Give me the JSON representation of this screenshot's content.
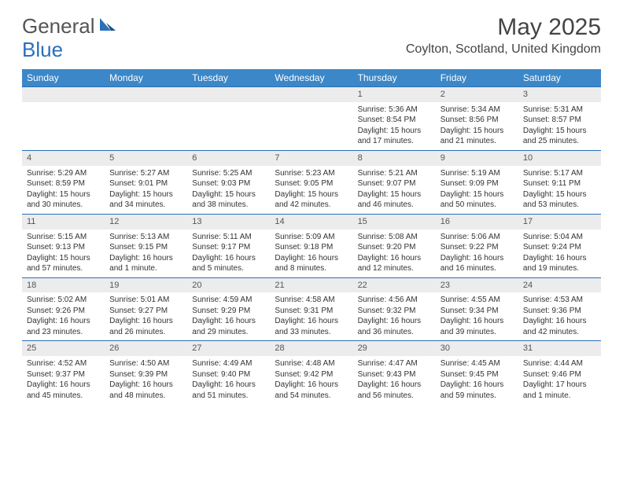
{
  "logo": {
    "general": "General",
    "blue": "Blue"
  },
  "title": "May 2025",
  "location": "Coylton, Scotland, United Kingdom",
  "colors": {
    "header_bg": "#3b87c8",
    "border": "#2a70b8",
    "daynum_bg": "#ececec",
    "text": "#333333"
  },
  "day_headers": [
    "Sunday",
    "Monday",
    "Tuesday",
    "Wednesday",
    "Thursday",
    "Friday",
    "Saturday"
  ],
  "weeks": [
    [
      {
        "empty": true
      },
      {
        "empty": true
      },
      {
        "empty": true
      },
      {
        "empty": true
      },
      {
        "day": "1",
        "sunrise": "Sunrise: 5:36 AM",
        "sunset": "Sunset: 8:54 PM",
        "daylight": "Daylight: 15 hours and 17 minutes."
      },
      {
        "day": "2",
        "sunrise": "Sunrise: 5:34 AM",
        "sunset": "Sunset: 8:56 PM",
        "daylight": "Daylight: 15 hours and 21 minutes."
      },
      {
        "day": "3",
        "sunrise": "Sunrise: 5:31 AM",
        "sunset": "Sunset: 8:57 PM",
        "daylight": "Daylight: 15 hours and 25 minutes."
      }
    ],
    [
      {
        "day": "4",
        "sunrise": "Sunrise: 5:29 AM",
        "sunset": "Sunset: 8:59 PM",
        "daylight": "Daylight: 15 hours and 30 minutes."
      },
      {
        "day": "5",
        "sunrise": "Sunrise: 5:27 AM",
        "sunset": "Sunset: 9:01 PM",
        "daylight": "Daylight: 15 hours and 34 minutes."
      },
      {
        "day": "6",
        "sunrise": "Sunrise: 5:25 AM",
        "sunset": "Sunset: 9:03 PM",
        "daylight": "Daylight: 15 hours and 38 minutes."
      },
      {
        "day": "7",
        "sunrise": "Sunrise: 5:23 AM",
        "sunset": "Sunset: 9:05 PM",
        "daylight": "Daylight: 15 hours and 42 minutes."
      },
      {
        "day": "8",
        "sunrise": "Sunrise: 5:21 AM",
        "sunset": "Sunset: 9:07 PM",
        "daylight": "Daylight: 15 hours and 46 minutes."
      },
      {
        "day": "9",
        "sunrise": "Sunrise: 5:19 AM",
        "sunset": "Sunset: 9:09 PM",
        "daylight": "Daylight: 15 hours and 50 minutes."
      },
      {
        "day": "10",
        "sunrise": "Sunrise: 5:17 AM",
        "sunset": "Sunset: 9:11 PM",
        "daylight": "Daylight: 15 hours and 53 minutes."
      }
    ],
    [
      {
        "day": "11",
        "sunrise": "Sunrise: 5:15 AM",
        "sunset": "Sunset: 9:13 PM",
        "daylight": "Daylight: 15 hours and 57 minutes."
      },
      {
        "day": "12",
        "sunrise": "Sunrise: 5:13 AM",
        "sunset": "Sunset: 9:15 PM",
        "daylight": "Daylight: 16 hours and 1 minute."
      },
      {
        "day": "13",
        "sunrise": "Sunrise: 5:11 AM",
        "sunset": "Sunset: 9:17 PM",
        "daylight": "Daylight: 16 hours and 5 minutes."
      },
      {
        "day": "14",
        "sunrise": "Sunrise: 5:09 AM",
        "sunset": "Sunset: 9:18 PM",
        "daylight": "Daylight: 16 hours and 8 minutes."
      },
      {
        "day": "15",
        "sunrise": "Sunrise: 5:08 AM",
        "sunset": "Sunset: 9:20 PM",
        "daylight": "Daylight: 16 hours and 12 minutes."
      },
      {
        "day": "16",
        "sunrise": "Sunrise: 5:06 AM",
        "sunset": "Sunset: 9:22 PM",
        "daylight": "Daylight: 16 hours and 16 minutes."
      },
      {
        "day": "17",
        "sunrise": "Sunrise: 5:04 AM",
        "sunset": "Sunset: 9:24 PM",
        "daylight": "Daylight: 16 hours and 19 minutes."
      }
    ],
    [
      {
        "day": "18",
        "sunrise": "Sunrise: 5:02 AM",
        "sunset": "Sunset: 9:26 PM",
        "daylight": "Daylight: 16 hours and 23 minutes."
      },
      {
        "day": "19",
        "sunrise": "Sunrise: 5:01 AM",
        "sunset": "Sunset: 9:27 PM",
        "daylight": "Daylight: 16 hours and 26 minutes."
      },
      {
        "day": "20",
        "sunrise": "Sunrise: 4:59 AM",
        "sunset": "Sunset: 9:29 PM",
        "daylight": "Daylight: 16 hours and 29 minutes."
      },
      {
        "day": "21",
        "sunrise": "Sunrise: 4:58 AM",
        "sunset": "Sunset: 9:31 PM",
        "daylight": "Daylight: 16 hours and 33 minutes."
      },
      {
        "day": "22",
        "sunrise": "Sunrise: 4:56 AM",
        "sunset": "Sunset: 9:32 PM",
        "daylight": "Daylight: 16 hours and 36 minutes."
      },
      {
        "day": "23",
        "sunrise": "Sunrise: 4:55 AM",
        "sunset": "Sunset: 9:34 PM",
        "daylight": "Daylight: 16 hours and 39 minutes."
      },
      {
        "day": "24",
        "sunrise": "Sunrise: 4:53 AM",
        "sunset": "Sunset: 9:36 PM",
        "daylight": "Daylight: 16 hours and 42 minutes."
      }
    ],
    [
      {
        "day": "25",
        "sunrise": "Sunrise: 4:52 AM",
        "sunset": "Sunset: 9:37 PM",
        "daylight": "Daylight: 16 hours and 45 minutes."
      },
      {
        "day": "26",
        "sunrise": "Sunrise: 4:50 AM",
        "sunset": "Sunset: 9:39 PM",
        "daylight": "Daylight: 16 hours and 48 minutes."
      },
      {
        "day": "27",
        "sunrise": "Sunrise: 4:49 AM",
        "sunset": "Sunset: 9:40 PM",
        "daylight": "Daylight: 16 hours and 51 minutes."
      },
      {
        "day": "28",
        "sunrise": "Sunrise: 4:48 AM",
        "sunset": "Sunset: 9:42 PM",
        "daylight": "Daylight: 16 hours and 54 minutes."
      },
      {
        "day": "29",
        "sunrise": "Sunrise: 4:47 AM",
        "sunset": "Sunset: 9:43 PM",
        "daylight": "Daylight: 16 hours and 56 minutes."
      },
      {
        "day": "30",
        "sunrise": "Sunrise: 4:45 AM",
        "sunset": "Sunset: 9:45 PM",
        "daylight": "Daylight: 16 hours and 59 minutes."
      },
      {
        "day": "31",
        "sunrise": "Sunrise: 4:44 AM",
        "sunset": "Sunset: 9:46 PM",
        "daylight": "Daylight: 17 hours and 1 minute."
      }
    ]
  ]
}
